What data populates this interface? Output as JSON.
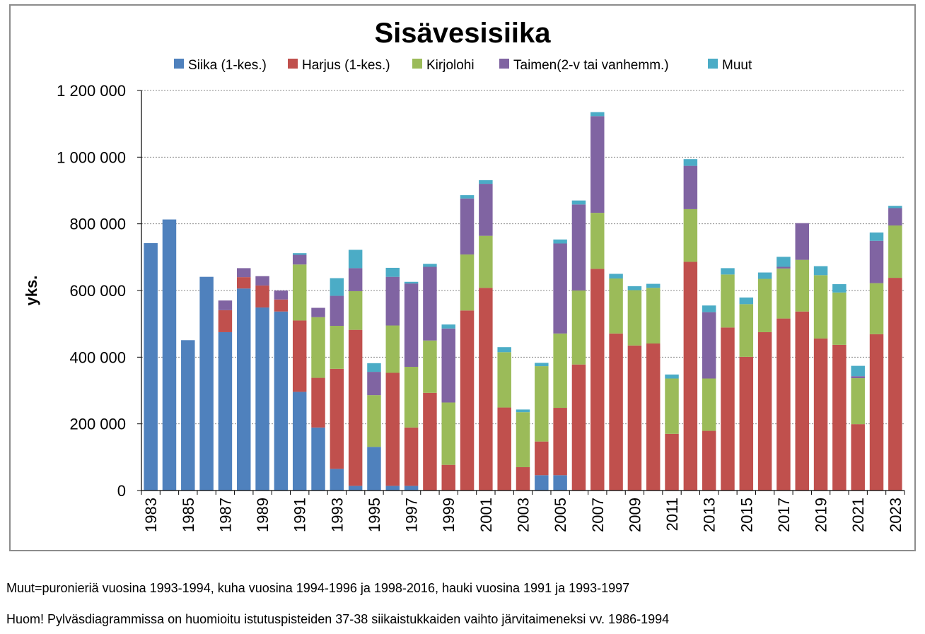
{
  "chart_data": {
    "type": "bar",
    "stacked": true,
    "title": "Sisävesisiika",
    "xlabel": "",
    "ylabel": "yks.",
    "ylim": [
      0,
      1200000
    ],
    "yticks": [
      0,
      200000,
      400000,
      600000,
      800000,
      1000000,
      1200000
    ],
    "ytick_labels": [
      "0",
      "200 000",
      "400 000",
      "600 000",
      "800 000",
      "1 000 000",
      "1 200 000"
    ],
    "grid": true,
    "legend_position": "top",
    "categories": [
      "1983",
      "1984",
      "1985",
      "1986",
      "1987",
      "1988",
      "1989",
      "1990",
      "1991",
      "1992",
      "1993",
      "1994",
      "1995",
      "1996",
      "1997",
      "1998",
      "1999",
      "2000",
      "2001",
      "2002",
      "2003",
      "2004",
      "2005",
      "2006",
      "2007",
      "2008",
      "2009",
      "2010",
      "2011",
      "2012",
      "2013",
      "2014",
      "2015",
      "2016",
      "2017",
      "2018",
      "2019",
      "2020",
      "2021",
      "2022",
      "2023"
    ],
    "xtick_labels": [
      "1983",
      "",
      "1985",
      "",
      "1987",
      "",
      "1989",
      "",
      "1991",
      "",
      "1993",
      "",
      "1995",
      "",
      "1997",
      "",
      "1999",
      "",
      "2001",
      "",
      "2003",
      "",
      "2005",
      "",
      "2007",
      "",
      "2009",
      "",
      "2011",
      "",
      "2013",
      "",
      "2015",
      "",
      "2017",
      "",
      "2019",
      "",
      "2021",
      "",
      "2023"
    ],
    "series": [
      {
        "name": "Siika (1-kes.)",
        "color": "#4f81bd",
        "values": [
          742000,
          813000,
          451000,
          641000,
          475000,
          606000,
          549000,
          537000,
          296000,
          189000,
          65000,
          14000,
          131000,
          14000,
          14000,
          0,
          0,
          0,
          0,
          0,
          0,
          46000,
          46000,
          0,
          0,
          0,
          0,
          0,
          0,
          0,
          0,
          0,
          0,
          0,
          0,
          0,
          0,
          0,
          0,
          0,
          0
        ]
      },
      {
        "name": "Harjus (1-kes.)",
        "color": "#c0504d",
        "values": [
          0,
          0,
          0,
          0,
          66000,
          34000,
          66000,
          36000,
          214000,
          149000,
          300000,
          468000,
          0,
          339000,
          175000,
          293000,
          77000,
          540000,
          608000,
          249000,
          70000,
          101000,
          202000,
          378000,
          665000,
          471000,
          435000,
          441000,
          170000,
          686000,
          179000,
          489000,
          401000,
          475000,
          516000,
          537000,
          456000,
          437000,
          199000,
          469000,
          638000
        ]
      },
      {
        "name": "Kirjolohi",
        "color": "#9bbb59",
        "values": [
          0,
          0,
          0,
          0,
          0,
          0,
          0,
          0,
          168000,
          182000,
          129000,
          116000,
          155000,
          142000,
          182000,
          157000,
          187000,
          168000,
          156000,
          166000,
          165000,
          226000,
          223000,
          222000,
          168000,
          165000,
          166000,
          167000,
          166000,
          158000,
          157000,
          159000,
          158000,
          160000,
          150000,
          155000,
          190000,
          157000,
          138000,
          153000,
          157000
        ]
      },
      {
        "name": "Taimen(2-v tai vanhemm.)",
        "color": "#8064a2",
        "values": [
          0,
          0,
          0,
          0,
          29000,
          27000,
          28000,
          27000,
          29000,
          28000,
          90000,
          69000,
          70000,
          146000,
          250000,
          221000,
          222000,
          168000,
          156000,
          0,
          0,
          0,
          270000,
          258000,
          290000,
          0,
          0,
          0,
          0,
          130000,
          199000,
          0,
          0,
          0,
          5000,
          110000,
          0,
          0,
          6000,
          127000,
          52000
        ]
      },
      {
        "name": "Muut",
        "color": "#4bacc6",
        "values": [
          0,
          0,
          0,
          0,
          0,
          0,
          0,
          0,
          5000,
          0,
          53000,
          55000,
          26000,
          27000,
          5000,
          9000,
          12000,
          10000,
          11000,
          15000,
          8000,
          10000,
          12000,
          12000,
          12000,
          14000,
          12000,
          12000,
          12000,
          20000,
          20000,
          19000,
          20000,
          19000,
          30000,
          0,
          27000,
          25000,
          31000,
          25000,
          7000
        ]
      }
    ]
  },
  "footnotes": {
    "line1": "Muut=puronieriä vuosina 1993-1994, kuha vuosina 1994-1996 ja 1998-2016, hauki vuosina 1991 ja 1993-1997",
    "line2": "Huom! Pylväsdiagrammissa on huomioitu istutuspisteiden 37-38 siikaistukkaiden vaihto järvitaimeneksi vv. 1986-1994"
  }
}
